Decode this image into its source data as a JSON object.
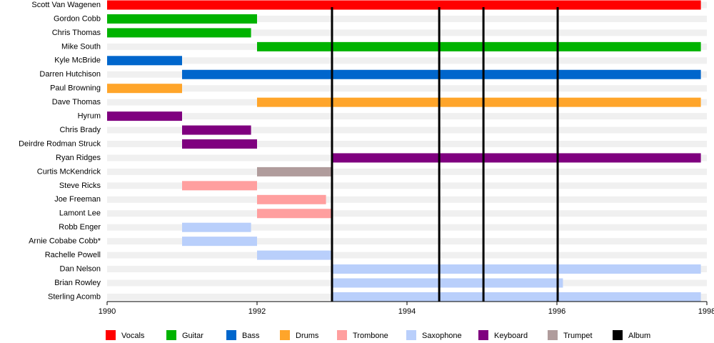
{
  "chart_data": {
    "type": "timeline",
    "xlim": [
      1990,
      1998
    ],
    "xticks": [
      1990,
      1992,
      1994,
      1996,
      1998
    ],
    "legend": [
      {
        "name": "Vocals",
        "color": "#ff0000"
      },
      {
        "name": "Guitar",
        "color": "#00b300"
      },
      {
        "name": "Bass",
        "color": "#0066cc"
      },
      {
        "name": "Drums",
        "color": "#ffa52a"
      },
      {
        "name": "Trombone",
        "color": "#ff9f9f"
      },
      {
        "name": "Saxophone",
        "color": "#b9cffb"
      },
      {
        "name": "Keyboard",
        "color": "#7f007f"
      },
      {
        "name": "Trumpet",
        "color": "#b09c9c"
      },
      {
        "name": "Album",
        "color": "#000000"
      }
    ],
    "albums": [
      1993,
      1994.43,
      1995.02,
      1996.01
    ],
    "rows": [
      {
        "name": "Scott Van Wagenen",
        "role": "Vocals",
        "start": 1990,
        "end": 1997.92
      },
      {
        "name": "Gordon Cobb",
        "role": "Guitar",
        "start": 1990,
        "end": 1992
      },
      {
        "name": "Chris Thomas",
        "role": "Guitar",
        "start": 1990,
        "end": 1991.92
      },
      {
        "name": "Mike South",
        "role": "Guitar",
        "start": 1992,
        "end": 1997.92
      },
      {
        "name": "Kyle McBride",
        "role": "Bass",
        "start": 1990,
        "end": 1991
      },
      {
        "name": "Darren Hutchison",
        "role": "Bass",
        "start": 1991,
        "end": 1997.92
      },
      {
        "name": "Paul Browning",
        "role": "Drums",
        "start": 1990,
        "end": 1991
      },
      {
        "name": "Dave Thomas",
        "role": "Drums",
        "start": 1992,
        "end": 1997.92
      },
      {
        "name": "Hyrum",
        "role": "Keyboard",
        "start": 1990,
        "end": 1991
      },
      {
        "name": "Chris Brady",
        "role": "Keyboard",
        "start": 1991,
        "end": 1991.92
      },
      {
        "name": "Deirdre Rodman Struck",
        "role": "Keyboard",
        "start": 1991,
        "end": 1992
      },
      {
        "name": "Ryan Ridges",
        "role": "Keyboard",
        "start": 1993,
        "end": 1997.92
      },
      {
        "name": "Curtis McKendrick",
        "role": "Trumpet",
        "start": 1992,
        "end": 1993
      },
      {
        "name": "Steve Ricks",
        "role": "Trombone",
        "start": 1991,
        "end": 1992
      },
      {
        "name": "Joe Freeman",
        "role": "Trombone",
        "start": 1992,
        "end": 1992.92
      },
      {
        "name": "Lamont Lee",
        "role": "Trombone",
        "start": 1992,
        "end": 1993
      },
      {
        "name": "Robb Enger",
        "role": "Saxophone",
        "start": 1991,
        "end": 1991.92
      },
      {
        "name": "Arnie Cobabe Cobb*",
        "role": "Saxophone",
        "start": 1991,
        "end": 1992
      },
      {
        "name": "Rachelle Powell",
        "role": "Saxophone",
        "start": 1992,
        "end": 1993
      },
      {
        "name": "Dan Nelson",
        "role": "Saxophone",
        "start": 1993,
        "end": 1997.92
      },
      {
        "name": "Brian Rowley",
        "role": "Saxophone",
        "start": 1993,
        "end": 1996.08
      },
      {
        "name": "Sterling Acomb",
        "role": "Saxophone",
        "start": 1993,
        "end": 1997.92
      }
    ]
  }
}
